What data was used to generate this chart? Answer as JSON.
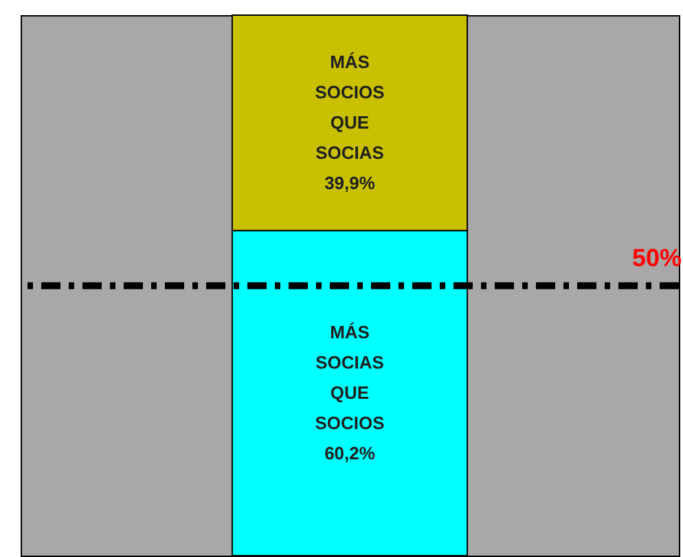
{
  "chart_data": {
    "type": "bar",
    "stacked": true,
    "categories": [
      null
    ],
    "series": [
      {
        "color": "#00ffff",
        "values": [
          60.2
        ],
        "value_labels": [
          "MÁS SOCIAS QUE SOCIOS 60,2%"
        ]
      },
      {
        "color": "#c8c000",
        "values": [
          39.9
        ],
        "value_labels": [
          "MÁS SOCIOS QUE SOCIAS 39,9%"
        ]
      }
    ],
    "ylim": [
      0,
      100.1
    ],
    "tick_labels": false,
    "grid": false,
    "ref_lines": [
      {
        "axis": "y",
        "value": 50,
        "label": "50%",
        "color": "#000000",
        "line_style": "dashed"
      }
    ]
  }
}
